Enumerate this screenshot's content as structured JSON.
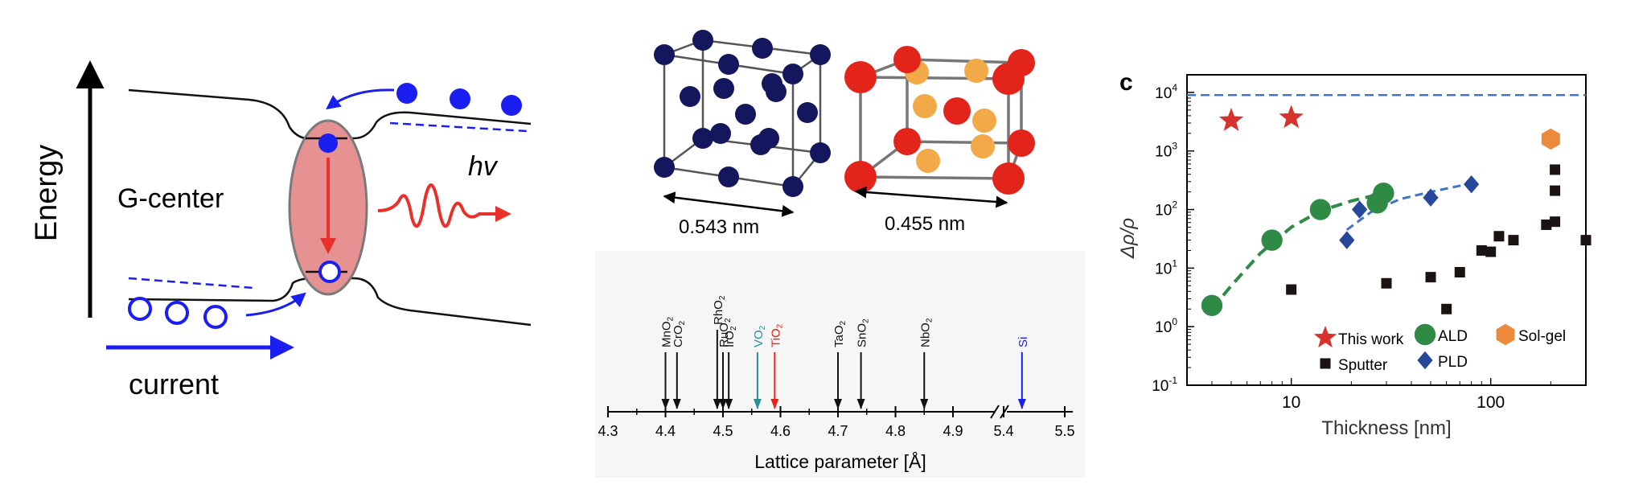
{
  "panel_a": {
    "energy_label": "Energy",
    "center_label": "G-center",
    "photon_label": "hv",
    "current_label": "current",
    "colors": {
      "electron": "#1b1ef0",
      "recombination": "#e8312a",
      "center_fill": "#e79292"
    }
  },
  "panel_b": {
    "cell_left_label": "0.543 nm",
    "cell_right_label": "0.455 nm",
    "colors": {
      "si_atom": "#15175e",
      "o_atom": "#e3241b",
      "metal_atom": "#f2a948"
    },
    "lattice_chart": {
      "type": "scatter",
      "xlabel": "Lattice parameter [Å]",
      "ticks": [
        "4.3",
        "4.4",
        "4.5",
        "4.6",
        "4.7",
        "4.8",
        "4.9",
        "5.4",
        "5.5"
      ],
      "materials": [
        {
          "name": "MnO",
          "sub": "2",
          "value": 4.4,
          "color": "#111111"
        },
        {
          "name": "CrO",
          "sub": "2",
          "value": 4.42,
          "color": "#111111"
        },
        {
          "name": "RhO",
          "sub": "2",
          "value": 4.49,
          "color": "#111111"
        },
        {
          "name": "RuO",
          "sub": "2",
          "value": 4.5,
          "color": "#111111"
        },
        {
          "name": "IrO",
          "sub": "2",
          "value": 4.51,
          "color": "#111111"
        },
        {
          "name": "VO",
          "sub": "2",
          "value": 4.56,
          "color": "#2b8f96"
        },
        {
          "name": "TiO",
          "sub": "2",
          "value": 4.59,
          "color": "#e3241b"
        },
        {
          "name": "TaO",
          "sub": "2",
          "value": 4.7,
          "color": "#111111"
        },
        {
          "name": "SnO",
          "sub": "2",
          "value": 4.74,
          "color": "#111111"
        },
        {
          "name": "NbO",
          "sub": "2",
          "value": 4.85,
          "color": "#111111"
        },
        {
          "name": "Si",
          "sub": "",
          "value": 5.43,
          "color": "#1b1ef0"
        }
      ]
    }
  },
  "panel_c": {
    "letter": "c",
    "chart_data": {
      "type": "scatter",
      "xlabel": "Thickness [nm]",
      "ylabel": "Δρ/ρ",
      "xscale": "log",
      "yscale": "log",
      "xlim": [
        3,
        300
      ],
      "ylim": [
        0.1,
        20000
      ],
      "x_ticks": [
        "10",
        "100"
      ],
      "y_ticks": [
        "10^-1",
        "10^0",
        "10^1",
        "10^2",
        "10^3",
        "10^4"
      ],
      "reference_line_y": 9000,
      "legend": [
        "This work",
        "ALD",
        "Sol-gel",
        "Sputter",
        "PLD"
      ],
      "series": [
        {
          "name": "This work",
          "marker": "star",
          "color": "#d8322c",
          "points": [
            [
              5,
              3300
            ],
            [
              10,
              3700
            ]
          ]
        },
        {
          "name": "ALD",
          "marker": "circle",
          "color": "#2f8a45",
          "points": [
            [
              4,
              2.3
            ],
            [
              8,
              30
            ],
            [
              14,
              100
            ],
            [
              27,
              130
            ],
            [
              29,
              190
            ]
          ]
        },
        {
          "name": "Sol-gel",
          "marker": "hexagon",
          "color": "#ea8a3a",
          "points": [
            [
              200,
              1600
            ]
          ]
        },
        {
          "name": "Sputter",
          "marker": "square",
          "color": "#1b1311",
          "points": [
            [
              10,
              4.3
            ],
            [
              30,
              5.5
            ],
            [
              50,
              7
            ],
            [
              60,
              2
            ],
            [
              70,
              8.5
            ],
            [
              90,
              20
            ],
            [
              100,
              19
            ],
            [
              110,
              35
            ],
            [
              130,
              30
            ],
            [
              190,
              55
            ],
            [
              210,
              62
            ],
            [
              210,
              210
            ],
            [
              210,
              480
            ],
            [
              300,
              30
            ]
          ]
        },
        {
          "name": "PLD",
          "marker": "diamond",
          "color": "#27479b",
          "points": [
            [
              19,
              30
            ],
            [
              22,
              100
            ],
            [
              50,
              160
            ],
            [
              80,
              270
            ]
          ]
        }
      ],
      "fits": [
        {
          "name": "ALD",
          "color": "#2f8a45",
          "points": [
            [
              4,
              2
            ],
            [
              5,
              5
            ],
            [
              7,
              18
            ],
            [
              10,
              50
            ],
            [
              14,
              95
            ],
            [
              20,
              140
            ],
            [
              30,
              195
            ]
          ]
        },
        {
          "name": "PLD",
          "color": "#3f74c8",
          "points": [
            [
              19,
              45
            ],
            [
              25,
              90
            ],
            [
              35,
              150
            ],
            [
              50,
              200
            ],
            [
              80,
              280
            ]
          ]
        }
      ]
    }
  }
}
